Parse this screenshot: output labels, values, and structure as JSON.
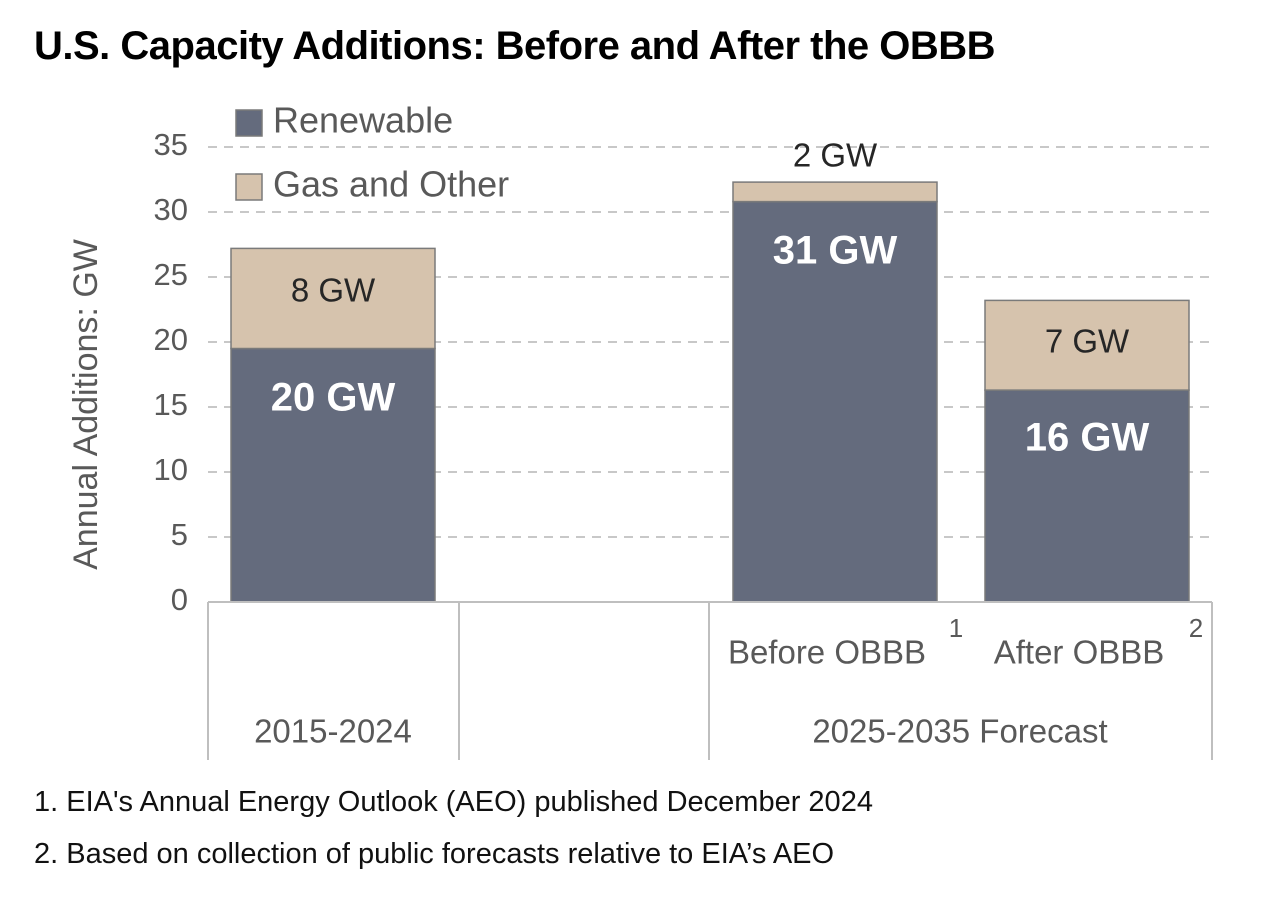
{
  "title": "U.S. Capacity Additions: Before and After the OBBB",
  "colors": {
    "renewable": "#646b7d",
    "gas_and_other": "#d6c3ad",
    "grid": "#c8c8c8",
    "axis_text": "#595959",
    "label_dark": "#262626",
    "label_light": "#ffffff"
  },
  "chart_data": {
    "type": "bar",
    "stacked": true,
    "ylabel": "Annual Additions: GW",
    "xlabel": "",
    "ylim": [
      0,
      35
    ],
    "yticks": [
      0,
      5,
      10,
      15,
      20,
      25,
      30,
      35
    ],
    "grid": true,
    "legend_position": "top-left",
    "groups": [
      {
        "label": "2015-2024",
        "bars": [
          0
        ]
      },
      {
        "label": "2025-2035 Forecast",
        "bars": [
          1,
          2
        ]
      }
    ],
    "categories": [
      {
        "label": "",
        "superscript": ""
      },
      {
        "label": "Before OBBB",
        "superscript": "1"
      },
      {
        "label": "After OBBB",
        "superscript": "2"
      }
    ],
    "series": [
      {
        "name": "Renewable",
        "color_key": "renewable",
        "values": [
          19.5,
          30.8,
          16.3
        ],
        "labels": [
          "20 GW",
          "31 GW",
          "16 GW"
        ]
      },
      {
        "name": "Gas and Other",
        "color_key": "gas_and_other",
        "values": [
          7.7,
          1.5,
          6.9
        ],
        "labels": [
          "8 GW",
          "2 GW",
          "7 GW"
        ]
      }
    ]
  },
  "footnotes": [
    "1. EIA's Annual Energy Outlook (AEO) published December 2024",
    "2. Based on collection of public forecasts relative to EIA’s AEO"
  ]
}
